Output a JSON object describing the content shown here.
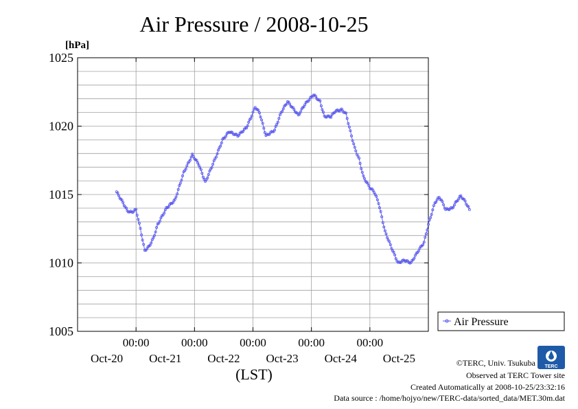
{
  "colors": {
    "series": "#5555ee",
    "grid": "#a0a0a0",
    "axis": "#000000",
    "logo": "#1e5aa8"
  },
  "footer": {
    "copyright": "©TERC, Univ. Tsukuba",
    "observed": "Observed at TERC Tower site",
    "created": "Created Automatically at 2008-10-25/23:32:16",
    "source": "Data source : /home/hojyo/new/TERC-data/sorted_data/MET.30m.dat"
  },
  "logo": {
    "text": "TERC",
    "icon": "terc-logo-icon"
  },
  "chart_data": {
    "type": "line",
    "title": "Air Pressure / 2008-10-25",
    "ylabel": "[hPa]",
    "xlabel": "(LST)",
    "ylim": [
      1005,
      1025
    ],
    "yticks": [
      1005,
      1010,
      1015,
      1020,
      1025
    ],
    "xlim": [
      -18,
      144
    ],
    "xticks": [
      {
        "x": 9,
        "time": "00:00",
        "date": "Oct-20"
      },
      {
        "x": 36,
        "time": "00:00",
        "date": "Oct-21"
      },
      {
        "x": 63,
        "time": "00:00",
        "date": "Oct-22"
      },
      {
        "x": 90,
        "time": "00:00",
        "date": "Oct-23"
      },
      {
        "x": 117,
        "time": "00:00",
        "date": "Oct-24"
      },
      {
        "x": 144,
        "time": "",
        "date": "Oct-25"
      }
    ],
    "grid": true,
    "legend_position": "right",
    "series": [
      {
        "name": "Air Pressure",
        "marker": "circle",
        "anchors": [
          [
            0,
            1015.2
          ],
          [
            3,
            1014.4
          ],
          [
            5,
            1013.8
          ],
          [
            7,
            1013.7
          ],
          [
            9,
            1013.9
          ],
          [
            11,
            1012.5
          ],
          [
            13,
            1010.9
          ],
          [
            15,
            1011.2
          ],
          [
            17,
            1011.8
          ],
          [
            19,
            1012.8
          ],
          [
            23,
            1014.0
          ],
          [
            27,
            1014.6
          ],
          [
            31,
            1016.6
          ],
          [
            35,
            1017.9
          ],
          [
            38,
            1017.2
          ],
          [
            41,
            1015.9
          ],
          [
            46,
            1017.8
          ],
          [
            49,
            1019.0
          ],
          [
            52,
            1019.6
          ],
          [
            56,
            1019.3
          ],
          [
            60,
            1019.9
          ],
          [
            62,
            1020.6
          ],
          [
            64,
            1021.4
          ],
          [
            66,
            1021.0
          ],
          [
            69,
            1019.3
          ],
          [
            73,
            1019.7
          ],
          [
            76,
            1021.0
          ],
          [
            79,
            1021.8
          ],
          [
            84,
            1020.8
          ],
          [
            87,
            1021.6
          ],
          [
            91,
            1022.3
          ],
          [
            94,
            1021.8
          ],
          [
            96,
            1020.7
          ],
          [
            99,
            1020.7
          ],
          [
            101,
            1021.1
          ],
          [
            104,
            1021.2
          ],
          [
            106,
            1020.9
          ],
          [
            108,
            1019.6
          ],
          [
            110,
            1018.4
          ],
          [
            112,
            1017.6
          ],
          [
            114,
            1016.3
          ],
          [
            117,
            1015.5
          ],
          [
            119,
            1015.2
          ],
          [
            121,
            1014.4
          ],
          [
            124,
            1012.3
          ],
          [
            127,
            1011.1
          ],
          [
            130,
            1010.0
          ],
          [
            133,
            1010.2
          ],
          [
            136,
            1010.0
          ],
          [
            139,
            1010.8
          ],
          [
            142,
            1011.5
          ],
          [
            144,
            1012.8
          ],
          [
            147,
            1014.4
          ],
          [
            149,
            1014.8
          ],
          [
            150,
            1014.6
          ],
          [
            152,
            1013.9
          ],
          [
            155,
            1014.0
          ],
          [
            157,
            1014.5
          ],
          [
            159,
            1014.9
          ],
          [
            161,
            1014.5
          ],
          [
            163,
            1013.9
          ]
        ]
      }
    ]
  }
}
